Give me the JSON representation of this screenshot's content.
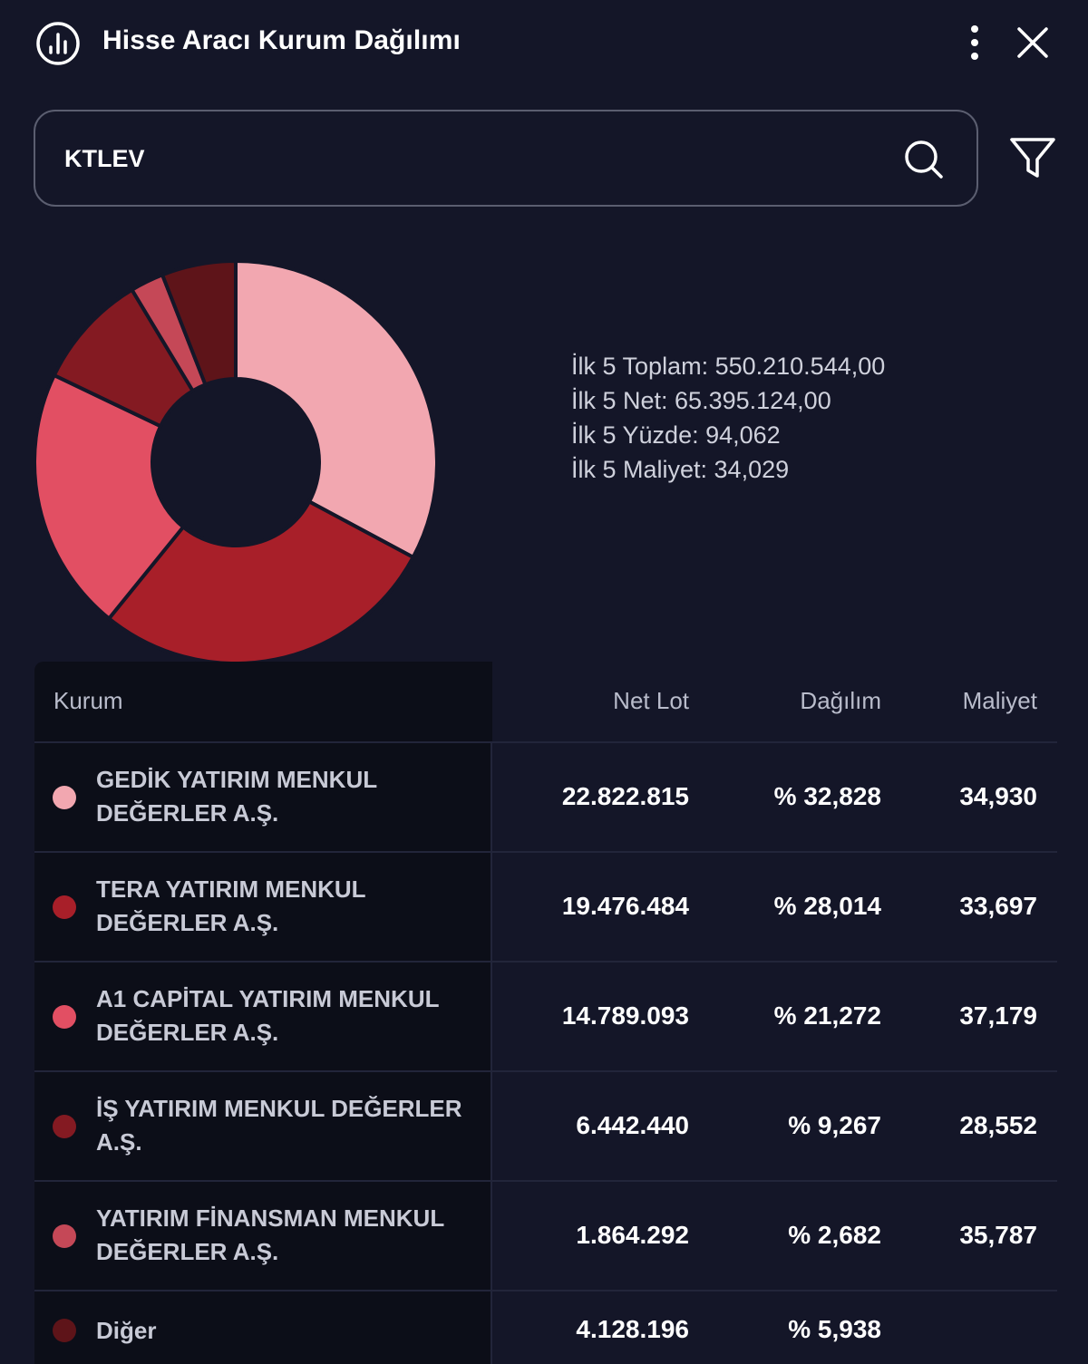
{
  "header": {
    "title": "Hisse Aracı Kurum Dağılımı",
    "icon": "bar-chart-circle-icon",
    "more_icon": "more-vertical-icon",
    "close_icon": "close-icon"
  },
  "search": {
    "value": "KTLEV",
    "icon": "search-icon"
  },
  "filter": {
    "icon": "filter-icon"
  },
  "summary": {
    "toplam": "İlk 5 Toplam: 550.210.544,00",
    "net": "İlk 5 Net: 65.395.124,00",
    "yuzde": "İlk 5 Yüzde: 94,062",
    "maliyet": "İlk 5 Maliyet: 34,029"
  },
  "table": {
    "headers": {
      "kurum": "Kurum",
      "net_lot": "Net Lot",
      "dagilim": "Dağılım",
      "maliyet": "Maliyet"
    },
    "rows": [
      {
        "name": "GEDİK YATIRIM MENKUL DEĞERLER A.Ş.",
        "net_lot": "22.822.815",
        "dagilim": "% 32,828",
        "maliyet": "34,930",
        "color": "#f2a7b0"
      },
      {
        "name": "TERA YATIRIM MENKUL DEĞERLER A.Ş.",
        "net_lot": "19.476.484",
        "dagilim": "% 28,014",
        "maliyet": "33,697",
        "color": "#a81f29"
      },
      {
        "name": "A1 CAPİTAL YATIRIM MENKUL DEĞERLER A.Ş.",
        "net_lot": "14.789.093",
        "dagilim": "% 21,272",
        "maliyet": "37,179",
        "color": "#e24f63"
      },
      {
        "name": "İŞ YATIRIM MENKUL DEĞERLER A.Ş.",
        "net_lot": "6.442.440",
        "dagilim": "% 9,267",
        "maliyet": "28,552",
        "color": "#841a22"
      },
      {
        "name": "YATIRIM FİNANSMAN MENKUL DEĞERLER A.Ş.",
        "net_lot": "1.864.292",
        "dagilim": "% 2,682",
        "maliyet": "35,787",
        "color": "#c54857"
      },
      {
        "name": "Diğer",
        "net_lot": "4.128.196",
        "dagilim": "% 5,938",
        "maliyet": "",
        "color": "#5e1419"
      }
    ]
  },
  "chart_data": {
    "type": "pie",
    "donut": true,
    "categories": [
      "GEDİK YATIRIM MENKUL DEĞERLER A.Ş.",
      "TERA YATIRIM MENKUL DEĞERLER A.Ş.",
      "A1 CAPİTAL YATIRIM MENKUL DEĞERLER A.Ş.",
      "İŞ YATIRIM MENKUL DEĞERLER A.Ş.",
      "YATIRIM FİNANSMAN MENKUL DEĞERLER A.Ş.",
      "Diğer"
    ],
    "values": [
      32.828,
      28.014,
      21.272,
      9.267,
      2.682,
      5.938
    ],
    "colors": [
      "#f2a7b0",
      "#a81f29",
      "#e24f63",
      "#841a22",
      "#c54857",
      "#5e1419"
    ]
  }
}
